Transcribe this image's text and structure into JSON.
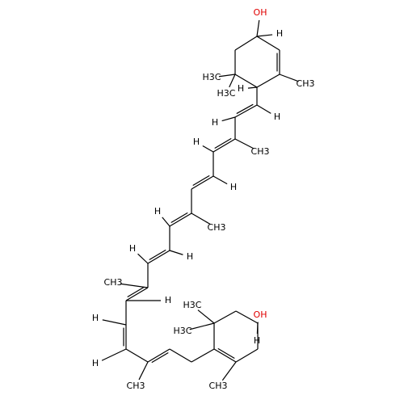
{
  "labels": [
    "OH",
    "H",
    "CH3",
    "H3C",
    "H3C",
    "H",
    "H",
    "H",
    "CH3",
    "H",
    "H",
    "CH3",
    "H",
    "H",
    "H",
    "CH3",
    "H",
    "H",
    "H",
    "CH3",
    "H3C",
    "H3C",
    "OH",
    "H",
    "CH3"
  ]
}
